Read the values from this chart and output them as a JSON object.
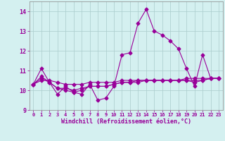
{
  "xlabel": "Windchill (Refroidissement éolien,°C)",
  "x": [
    0,
    1,
    2,
    3,
    4,
    5,
    6,
    7,
    8,
    9,
    10,
    11,
    12,
    13,
    14,
    15,
    16,
    17,
    18,
    19,
    20,
    21,
    22,
    23
  ],
  "line1": [
    10.3,
    11.1,
    10.4,
    9.8,
    10.2,
    9.9,
    9.8,
    10.3,
    9.5,
    9.6,
    10.2,
    11.8,
    11.9,
    13.4,
    14.1,
    13.0,
    12.8,
    12.5,
    12.1,
    11.1,
    10.2,
    11.8,
    10.6,
    10.6
  ],
  "line2": [
    10.3,
    10.7,
    10.4,
    10.1,
    10.1,
    10.0,
    10.1,
    10.2,
    10.2,
    10.2,
    10.3,
    10.4,
    10.4,
    10.5,
    10.5,
    10.5,
    10.5,
    10.5,
    10.5,
    10.5,
    10.5,
    10.5,
    10.6,
    10.6
  ],
  "line3": [
    10.3,
    10.6,
    10.4,
    10.1,
    10.0,
    9.9,
    10.0,
    10.2,
    10.2,
    10.2,
    10.3,
    10.4,
    10.4,
    10.4,
    10.5,
    10.5,
    10.5,
    10.5,
    10.5,
    10.5,
    10.4,
    10.5,
    10.6,
    10.6
  ],
  "line4": [
    10.3,
    10.5,
    10.5,
    10.4,
    10.3,
    10.3,
    10.3,
    10.4,
    10.4,
    10.4,
    10.4,
    10.5,
    10.5,
    10.5,
    10.5,
    10.5,
    10.5,
    10.5,
    10.5,
    10.6,
    10.6,
    10.6,
    10.6,
    10.6
  ],
  "color": "#990099",
  "bg_color": "#d4f0f0",
  "grid_color": "#aacccc",
  "ylim": [
    9.0,
    14.5
  ],
  "yticks": [
    9,
    10,
    11,
    12,
    13,
    14
  ],
  "xticks": [
    0,
    1,
    2,
    3,
    4,
    5,
    6,
    7,
    8,
    9,
    10,
    11,
    12,
    13,
    14,
    15,
    16,
    17,
    18,
    19,
    20,
    21,
    22,
    23
  ],
  "marker": "D",
  "markersize": 2.5,
  "linewidth": 0.8
}
